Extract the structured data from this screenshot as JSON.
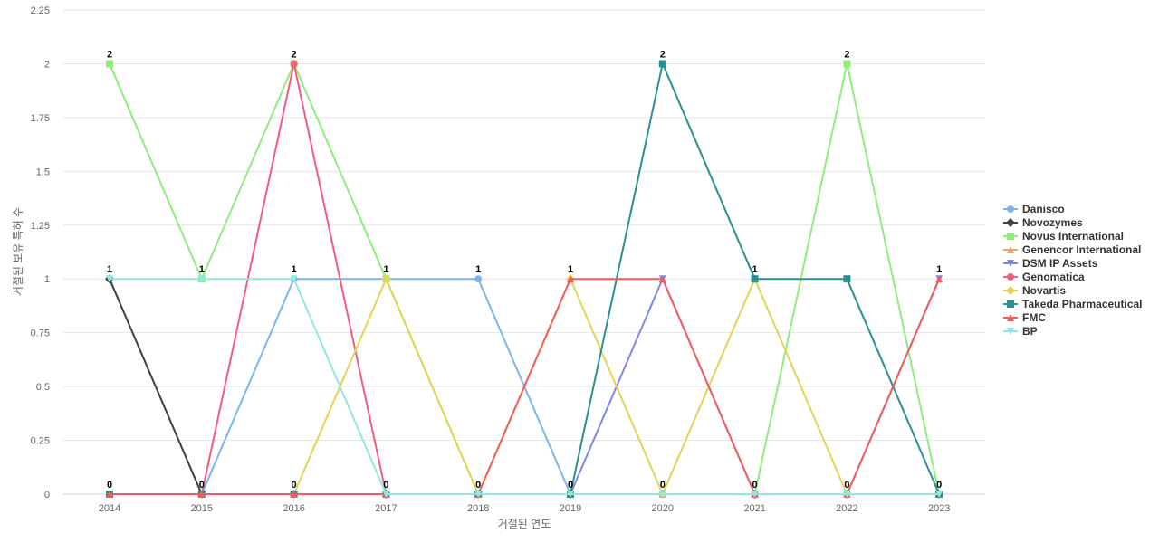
{
  "chart_data": {
    "type": "line",
    "title": "",
    "xlabel": "거절된 연도",
    "ylabel": "거절된 보유 특허 수",
    "x": [
      "2014",
      "2015",
      "2016",
      "2017",
      "2018",
      "2019",
      "2020",
      "2021",
      "2022",
      "2023"
    ],
    "ylim": [
      0,
      2.25
    ],
    "yticks": [
      "0",
      "0.25",
      "0.5",
      "0.75",
      "1",
      "1.25",
      "1.5",
      "1.75",
      "2",
      "2.25"
    ],
    "grid": true,
    "legend_position": "right",
    "series": [
      {
        "name": "Danisco",
        "color": "#7cb5ec",
        "marker": "circle",
        "values": [
          1,
          0,
          1,
          1,
          1,
          0,
          0,
          0,
          0,
          0
        ]
      },
      {
        "name": "Novozymes",
        "color": "#434348",
        "marker": "diamond",
        "values": [
          1,
          0,
          0,
          0,
          0,
          0,
          0,
          0,
          0,
          0
        ]
      },
      {
        "name": "Novus International",
        "color": "#90ed7d",
        "marker": "square",
        "values": [
          2,
          1,
          2,
          1,
          0,
          0,
          0,
          0,
          2,
          0
        ]
      },
      {
        "name": "Genencor International",
        "color": "#f7a35c",
        "marker": "triangle",
        "values": [
          0,
          0,
          0,
          0,
          0,
          0,
          0,
          0,
          0,
          0
        ]
      },
      {
        "name": "DSM IP Assets",
        "color": "#8085e9",
        "marker": "triangle-down",
        "values": [
          0,
          0,
          0,
          0,
          0,
          0,
          1,
          0,
          0,
          1
        ]
      },
      {
        "name": "Genomatica",
        "color": "#f15c80",
        "marker": "circle",
        "values": [
          0,
          0,
          2,
          0,
          0,
          0,
          0,
          0,
          0,
          0
        ]
      },
      {
        "name": "Novartis",
        "color": "#e4d354",
        "marker": "diamond",
        "values": [
          0,
          0,
          0,
          1,
          0,
          1,
          0,
          1,
          0,
          0
        ]
      },
      {
        "name": "Takeda Pharmaceutical",
        "color": "#2b908f",
        "marker": "square",
        "values": [
          0,
          0,
          0,
          0,
          0,
          0,
          2,
          1,
          1,
          0
        ]
      },
      {
        "name": "FMC",
        "color": "#f45b5b",
        "marker": "triangle",
        "values": [
          0,
          0,
          0,
          0,
          0,
          1,
          1,
          0,
          0,
          1
        ]
      },
      {
        "name": "BP",
        "color": "#91e8e1",
        "marker": "triangle-down",
        "values": [
          1,
          1,
          1,
          0,
          0,
          0,
          0,
          0,
          0,
          0
        ]
      }
    ],
    "data_labels": [
      "2",
      "1",
      "2",
      "1",
      "1",
      "1",
      "2",
      "1",
      "2",
      "1",
      "1",
      "1",
      "0",
      "0",
      "0",
      "0",
      "0",
      "0",
      "0",
      "0",
      "0",
      "0"
    ]
  }
}
